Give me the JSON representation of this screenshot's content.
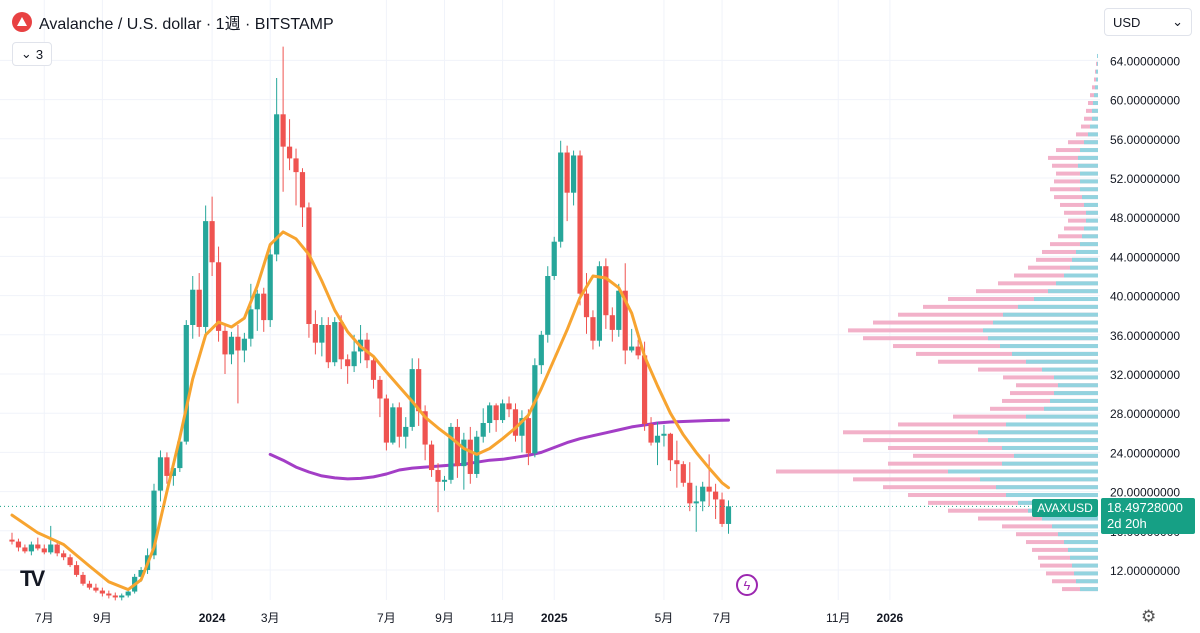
{
  "header": {
    "title": "Avalanche / U.S. dollar · 1週 · BITSTAMP",
    "indicator_count": "3",
    "currency": "USD"
  },
  "icons": {
    "logo": "avalanche-logo-icon",
    "collapse": "chevron-down-icon",
    "currency_dropdown": "chevron-down-icon",
    "tv": "tradingview-logo-icon",
    "flash": "lightning-icon",
    "settings": "gear-icon"
  },
  "price_label": {
    "symbol": "AVAXUSD",
    "price": "18.49728000",
    "countdown": "2d 20h"
  },
  "colors": {
    "up": "#26a69a",
    "down": "#ef5350",
    "ma_short": "#f7a430",
    "ma_long": "#a33ec6",
    "vp_up": "#8dd5e0",
    "vp_down": "#f0a3c0",
    "last_price": "#16a085"
  },
  "chart_data": {
    "type": "candlestick",
    "title": "Avalanche / U.S. dollar · 1週 · BITSTAMP",
    "y_axis": {
      "ticks": [
        "12.00000000",
        "16.00000000",
        "20.00000000",
        "24.00000000",
        "28.00000000",
        "32.00000000",
        "36.00000000",
        "40.00000000",
        "44.00000000",
        "48.00000000",
        "52.00000000",
        "56.00000000",
        "60.00000000",
        "64.00000000"
      ],
      "ylim": [
        10,
        66
      ]
    },
    "x_axis": {
      "ticks": [
        {
          "label": "7月",
          "w": 5
        },
        {
          "label": "9月",
          "w": 14
        },
        {
          "label": "2024",
          "w": 31
        },
        {
          "label": "3月",
          "w": 40
        },
        {
          "label": "7月",
          "w": 58
        },
        {
          "label": "9月",
          "w": 67
        },
        {
          "label": "11月",
          "w": 76
        },
        {
          "label": "2025",
          "w": 84
        },
        {
          "label": "5月",
          "w": 101
        },
        {
          "label": "7月",
          "w": 110
        },
        {
          "label": "11月",
          "w": 128
        },
        {
          "label": "2026",
          "w": 136
        }
      ]
    },
    "candles": [
      [
        15.1,
        15.8,
        14.6,
        14.9
      ],
      [
        14.9,
        15.2,
        13.9,
        14.3
      ],
      [
        14.3,
        14.6,
        13.7,
        13.9
      ],
      [
        13.9,
        14.9,
        13.5,
        14.6
      ],
      [
        14.6,
        15.3,
        14.0,
        14.2
      ],
      [
        14.2,
        14.6,
        13.6,
        13.8
      ],
      [
        13.8,
        16.5,
        13.6,
        14.6
      ],
      [
        14.6,
        15.0,
        13.4,
        13.7
      ],
      [
        13.7,
        14.0,
        13.0,
        13.3
      ],
      [
        13.3,
        13.6,
        12.3,
        12.5
      ],
      [
        12.5,
        12.9,
        11.3,
        11.5
      ],
      [
        11.5,
        11.8,
        10.4,
        10.6
      ],
      [
        10.6,
        10.9,
        10.0,
        10.2
      ],
      [
        10.2,
        10.6,
        9.7,
        9.9
      ],
      [
        9.9,
        10.2,
        9.3,
        9.6
      ],
      [
        9.6,
        9.9,
        9.1,
        9.4
      ],
      [
        9.4,
        9.7,
        8.9,
        9.2
      ],
      [
        9.2,
        9.6,
        8.9,
        9.4
      ],
      [
        9.4,
        10.1,
        9.2,
        9.8
      ],
      [
        9.8,
        11.6,
        9.6,
        11.3
      ],
      [
        11.3,
        12.3,
        10.8,
        12.0
      ],
      [
        12.0,
        14.2,
        11.6,
        13.5
      ],
      [
        13.5,
        20.8,
        13.1,
        20.1
      ],
      [
        20.1,
        24.2,
        19.0,
        23.5
      ],
      [
        23.5,
        24.0,
        20.8,
        21.6
      ],
      [
        21.6,
        23.0,
        20.6,
        22.4
      ],
      [
        22.4,
        25.6,
        22.0,
        25.1
      ],
      [
        25.1,
        37.5,
        24.8,
        37.0
      ],
      [
        37.0,
        42.0,
        35.6,
        40.6
      ],
      [
        40.6,
        42.3,
        35.8,
        36.8
      ],
      [
        36.8,
        49.2,
        36.0,
        47.6
      ],
      [
        47.6,
        50.1,
        42.0,
        43.4
      ],
      [
        43.4,
        45.0,
        35.3,
        36.4
      ],
      [
        36.4,
        37.1,
        32.0,
        34.0
      ],
      [
        34.0,
        36.3,
        33.0,
        35.8
      ],
      [
        35.8,
        37.0,
        29.0,
        34.4
      ],
      [
        34.4,
        36.2,
        33.2,
        35.6
      ],
      [
        35.6,
        41.2,
        34.8,
        38.6
      ],
      [
        38.6,
        40.6,
        36.4,
        40.2
      ],
      [
        40.2,
        40.8,
        36.3,
        37.5
      ],
      [
        37.5,
        45.0,
        36.8,
        44.2
      ],
      [
        44.2,
        62.2,
        43.5,
        58.5
      ],
      [
        58.5,
        65.4,
        50.6,
        55.2
      ],
      [
        55.2,
        58.0,
        52.8,
        54.0
      ],
      [
        54.0,
        55.0,
        49.2,
        52.6
      ],
      [
        52.6,
        53.0,
        47.0,
        49.0
      ],
      [
        49.0,
        49.5,
        35.7,
        37.1
      ],
      [
        37.1,
        38.5,
        34.0,
        35.2
      ],
      [
        35.2,
        37.8,
        33.8,
        37.0
      ],
      [
        37.0,
        37.8,
        32.6,
        33.2
      ],
      [
        33.2,
        37.8,
        32.8,
        37.3
      ],
      [
        37.3,
        38.0,
        32.5,
        33.5
      ],
      [
        33.5,
        34.0,
        31.0,
        32.8
      ],
      [
        32.8,
        36.0,
        32.2,
        34.3
      ],
      [
        34.3,
        37.0,
        33.1,
        35.5
      ],
      [
        35.5,
        36.2,
        32.6,
        33.4
      ],
      [
        33.4,
        33.8,
        30.5,
        31.4
      ],
      [
        31.4,
        31.8,
        27.6,
        29.5
      ],
      [
        29.5,
        29.9,
        24.2,
        25.0
      ],
      [
        25.0,
        29.0,
        24.8,
        28.6
      ],
      [
        28.6,
        29.1,
        24.5,
        25.6
      ],
      [
        25.6,
        27.6,
        24.4,
        26.6
      ],
      [
        26.6,
        33.6,
        26.2,
        32.5
      ],
      [
        32.5,
        33.6,
        26.7,
        28.2
      ],
      [
        28.2,
        28.8,
        23.2,
        24.8
      ],
      [
        24.8,
        25.2,
        21.5,
        22.2
      ],
      [
        22.2,
        22.9,
        17.9,
        21.0
      ],
      [
        21.0,
        21.6,
        20.1,
        21.2
      ],
      [
        21.2,
        27.0,
        20.8,
        26.6
      ],
      [
        26.6,
        27.4,
        21.4,
        22.6
      ],
      [
        22.6,
        26.0,
        20.2,
        25.3
      ],
      [
        25.3,
        26.6,
        20.8,
        21.8
      ],
      [
        21.8,
        26.2,
        21.4,
        25.6
      ],
      [
        25.6,
        28.5,
        25.0,
        27.0
      ],
      [
        27.0,
        29.1,
        26.0,
        28.8
      ],
      [
        28.8,
        29.0,
        26.1,
        27.3
      ],
      [
        27.3,
        29.4,
        27.0,
        29.0
      ],
      [
        29.0,
        29.7,
        27.6,
        28.4
      ],
      [
        28.4,
        29.0,
        25.1,
        25.7
      ],
      [
        25.7,
        28.3,
        24.0,
        27.5
      ],
      [
        27.5,
        28.4,
        22.7,
        23.9
      ],
      [
        23.9,
        33.6,
        23.5,
        32.9
      ],
      [
        32.9,
        36.4,
        32.0,
        36.0
      ],
      [
        36.0,
        43.0,
        35.2,
        42.0
      ],
      [
        42.0,
        46.0,
        41.6,
        45.5
      ],
      [
        45.5,
        55.8,
        44.9,
        54.6
      ],
      [
        54.6,
        55.3,
        47.6,
        50.5
      ],
      [
        50.5,
        54.8,
        49.2,
        54.3
      ],
      [
        54.3,
        54.8,
        39.0,
        40.2
      ],
      [
        40.2,
        42.3,
        36.1,
        37.8
      ],
      [
        37.8,
        38.5,
        34.5,
        35.4
      ],
      [
        35.4,
        43.5,
        34.8,
        43.0
      ],
      [
        43.0,
        43.8,
        36.6,
        38.0
      ],
      [
        38.0,
        38.8,
        35.3,
        36.5
      ],
      [
        36.5,
        41.2,
        35.8,
        40.5
      ],
      [
        40.5,
        43.3,
        33.0,
        34.4
      ],
      [
        34.4,
        36.6,
        34.2,
        34.8
      ],
      [
        34.8,
        35.5,
        33.5,
        33.9
      ],
      [
        33.9,
        35.3,
        26.2,
        26.9
      ],
      [
        26.9,
        27.6,
        24.7,
        25.0
      ],
      [
        25.0,
        27.1,
        22.7,
        25.7
      ],
      [
        25.7,
        26.8,
        24.6,
        25.9
      ],
      [
        25.9,
        26.0,
        22.1,
        23.2
      ],
      [
        23.2,
        25.2,
        20.4,
        22.8
      ],
      [
        22.8,
        23.1,
        20.5,
        20.9
      ],
      [
        20.9,
        23.0,
        18.0,
        18.8
      ],
      [
        18.8,
        20.6,
        15.9,
        19.0
      ],
      [
        19.0,
        21.0,
        18.0,
        20.5
      ],
      [
        20.5,
        23.8,
        18.5,
        20.0
      ],
      [
        20.0,
        20.8,
        17.2,
        19.2
      ],
      [
        19.2,
        19.9,
        16.4,
        16.7
      ],
      [
        16.7,
        19.1,
        15.7,
        18.5
      ]
    ],
    "ma_short": [
      [
        0,
        17.6
      ],
      [
        4,
        15.8
      ],
      [
        8,
        14.6
      ],
      [
        12,
        12.4
      ],
      [
        15,
        10.8
      ],
      [
        18,
        10.0
      ],
      [
        20,
        11.0
      ],
      [
        22,
        14.3
      ],
      [
        24,
        20.0
      ],
      [
        26,
        25.5
      ],
      [
        28,
        31.5
      ],
      [
        30,
        36.0
      ],
      [
        32,
        37.3
      ],
      [
        34,
        36.8
      ],
      [
        36,
        37.7
      ],
      [
        38,
        41.0
      ],
      [
        40,
        45.2
      ],
      [
        42,
        46.5
      ],
      [
        44,
        45.8
      ],
      [
        46,
        44.2
      ],
      [
        48,
        41.5
      ],
      [
        50,
        38.5
      ],
      [
        52,
        36.3
      ],
      [
        54,
        34.8
      ],
      [
        56,
        33.8
      ],
      [
        58,
        32.2
      ],
      [
        60,
        30.7
      ],
      [
        62,
        29.2
      ],
      [
        64,
        27.6
      ],
      [
        66,
        26.5
      ],
      [
        68,
        25.5
      ],
      [
        70,
        24.4
      ],
      [
        72,
        23.8
      ],
      [
        74,
        24.4
      ],
      [
        76,
        25.4
      ],
      [
        78,
        26.5
      ],
      [
        80,
        27.8
      ],
      [
        82,
        30.5
      ],
      [
        84,
        33.5
      ],
      [
        86,
        36.5
      ],
      [
        88,
        39.8
      ],
      [
        90,
        42.0
      ],
      [
        92,
        41.8
      ],
      [
        94,
        40.8
      ],
      [
        96,
        38.2
      ],
      [
        98,
        33.8
      ],
      [
        100,
        30.8
      ],
      [
        102,
        28.0
      ],
      [
        104,
        25.8
      ],
      [
        106,
        24.0
      ],
      [
        108,
        22.4
      ],
      [
        110,
        20.9
      ],
      [
        111,
        20.4
      ]
    ],
    "ma_long": [
      [
        40,
        23.8
      ],
      [
        42,
        23.2
      ],
      [
        44,
        22.5
      ],
      [
        46,
        22.0
      ],
      [
        48,
        21.6
      ],
      [
        50,
        21.4
      ],
      [
        52,
        21.3
      ],
      [
        54,
        21.35
      ],
      [
        56,
        21.5
      ],
      [
        58,
        21.8
      ],
      [
        60,
        22.2
      ],
      [
        62,
        22.4
      ],
      [
        64,
        22.5
      ],
      [
        66,
        22.6
      ],
      [
        68,
        22.7
      ],
      [
        70,
        22.8
      ],
      [
        72,
        23.0
      ],
      [
        74,
        23.2
      ],
      [
        76,
        23.3
      ],
      [
        78,
        23.5
      ],
      [
        80,
        23.7
      ],
      [
        82,
        24.0
      ],
      [
        84,
        24.5
      ],
      [
        86,
        25.0
      ],
      [
        88,
        25.4
      ],
      [
        90,
        25.7
      ],
      [
        92,
        26.0
      ],
      [
        94,
        26.3
      ],
      [
        96,
        26.6
      ],
      [
        98,
        26.8
      ],
      [
        100,
        27.0
      ],
      [
        102,
        27.1
      ],
      [
        104,
        27.15
      ],
      [
        106,
        27.2
      ],
      [
        108,
        27.25
      ],
      [
        111,
        27.3
      ]
    ],
    "volume_profile": [
      [
        64.4,
        1,
        1
      ],
      [
        63.6,
        2,
        1
      ],
      [
        62.8,
        3,
        2
      ],
      [
        62.0,
        4,
        2
      ],
      [
        61.2,
        6,
        3
      ],
      [
        60.4,
        8,
        4
      ],
      [
        59.6,
        10,
        5
      ],
      [
        58.8,
        12,
        6
      ],
      [
        58.0,
        14,
        6
      ],
      [
        57.2,
        17,
        8
      ],
      [
        56.4,
        22,
        10
      ],
      [
        55.6,
        30,
        14
      ],
      [
        54.8,
        42,
        18
      ],
      [
        54.0,
        50,
        20
      ],
      [
        53.2,
        46,
        20
      ],
      [
        52.4,
        42,
        18
      ],
      [
        51.6,
        44,
        18
      ],
      [
        50.8,
        48,
        18
      ],
      [
        50.0,
        44,
        16
      ],
      [
        49.2,
        38,
        14
      ],
      [
        48.4,
        34,
        12
      ],
      [
        47.6,
        30,
        12
      ],
      [
        46.8,
        34,
        14
      ],
      [
        46.0,
        40,
        16
      ],
      [
        45.2,
        48,
        18
      ],
      [
        44.4,
        56,
        22
      ],
      [
        43.6,
        62,
        26
      ],
      [
        42.8,
        70,
        28
      ],
      [
        42.0,
        84,
        34
      ],
      [
        41.2,
        100,
        42
      ],
      [
        40.4,
        122,
        50
      ],
      [
        39.6,
        150,
        64
      ],
      [
        38.8,
        175,
        80
      ],
      [
        38.0,
        200,
        95
      ],
      [
        37.2,
        225,
        105
      ],
      [
        36.4,
        250,
        115
      ],
      [
        35.6,
        235,
        110
      ],
      [
        34.8,
        205,
        98
      ],
      [
        34.0,
        182,
        86
      ],
      [
        33.2,
        160,
        72
      ],
      [
        32.4,
        120,
        56
      ],
      [
        31.6,
        95,
        44
      ],
      [
        30.8,
        82,
        40
      ],
      [
        30.0,
        88,
        44
      ],
      [
        29.2,
        96,
        48
      ],
      [
        28.4,
        108,
        54
      ],
      [
        27.6,
        145,
        72
      ],
      [
        26.8,
        200,
        92
      ],
      [
        26.0,
        255,
        120
      ],
      [
        25.2,
        235,
        110
      ],
      [
        24.4,
        210,
        96
      ],
      [
        23.6,
        185,
        84
      ],
      [
        22.8,
        210,
        96
      ],
      [
        22.0,
        322,
        150
      ],
      [
        21.2,
        245,
        118
      ],
      [
        20.4,
        215,
        102
      ],
      [
        19.6,
        190,
        92
      ],
      [
        18.8,
        170,
        80
      ],
      [
        18.0,
        150,
        70
      ],
      [
        17.2,
        120,
        56
      ],
      [
        16.4,
        96,
        46
      ],
      [
        15.6,
        82,
        40
      ],
      [
        14.8,
        72,
        34
      ],
      [
        14.0,
        66,
        30
      ],
      [
        13.2,
        60,
        28
      ],
      [
        12.4,
        58,
        26
      ],
      [
        11.6,
        52,
        24
      ],
      [
        10.8,
        46,
        22
      ],
      [
        10.0,
        36,
        18
      ]
    ]
  }
}
